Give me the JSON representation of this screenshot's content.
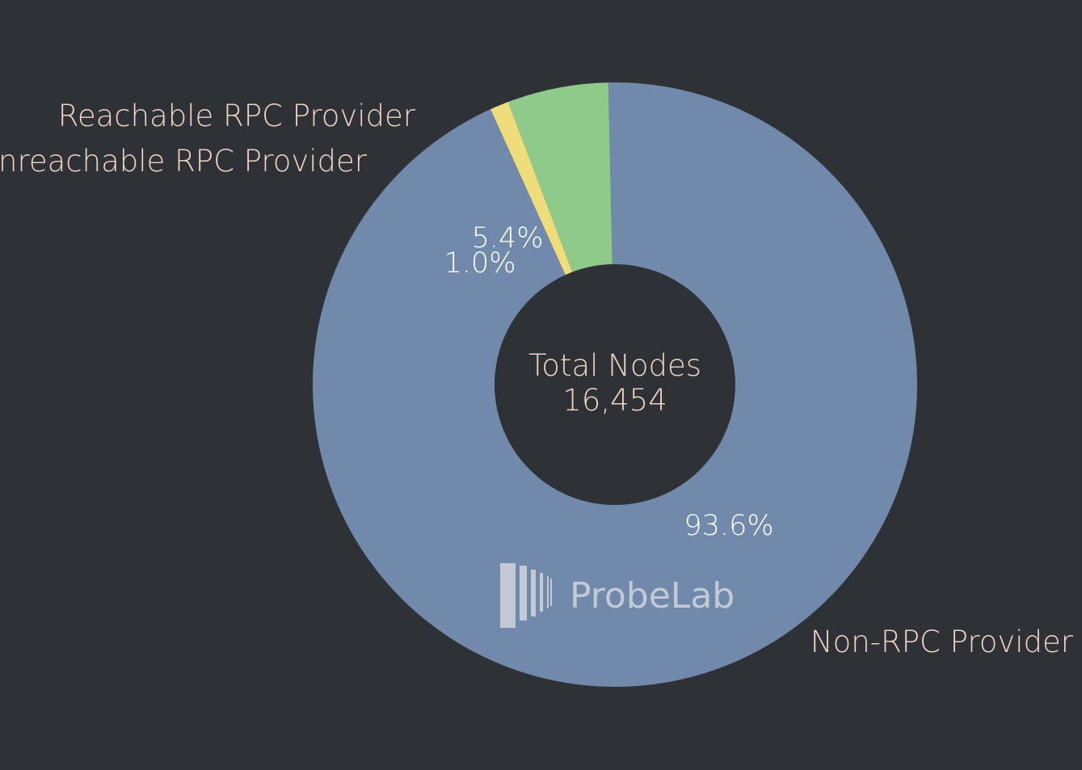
{
  "chart_data": {
    "type": "pie",
    "title": "",
    "center_label": "Total Nodes",
    "center_value": "16,454",
    "slices": [
      {
        "label": "Non-RPC Provider",
        "value": 93.6,
        "value_label": "93.6%",
        "color": "#7189ab"
      },
      {
        "label": "Unreachable RPC Provider",
        "value": 1.0,
        "value_label": "1.0%",
        "color": "#efdc7b"
      },
      {
        "label": "Reachable RPC Provider",
        "value": 5.4,
        "value_label": "5.4%",
        "color": "#8fca8a"
      }
    ]
  },
  "watermark": {
    "text": "ProbeLab",
    "icon": "probelab-logo-icon",
    "color": "#c3cad6"
  },
  "background_color": "#2e3237"
}
